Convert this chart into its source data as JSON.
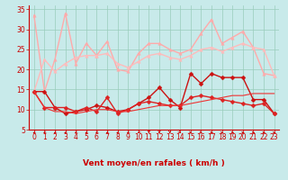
{
  "x": [
    0,
    1,
    2,
    3,
    4,
    5,
    6,
    7,
    8,
    9,
    10,
    11,
    12,
    13,
    14,
    15,
    16,
    17,
    18,
    19,
    20,
    21,
    22,
    23
  ],
  "series": [
    {
      "color": "#ffaaaa",
      "linewidth": 1.0,
      "marker": "^",
      "markersize": 2.5,
      "values": [
        33.5,
        14.5,
        22.5,
        34.0,
        21.5,
        26.5,
        23.5,
        27.0,
        20.0,
        19.5,
        24.0,
        26.5,
        26.5,
        25.0,
        24.0,
        25.0,
        29.0,
        32.5,
        26.5,
        28.0,
        29.5,
        25.5,
        19.0,
        18.5
      ]
    },
    {
      "color": "#ffbbbb",
      "linewidth": 1.0,
      "marker": "^",
      "markersize": 2.5,
      "values": [
        14.5,
        22.5,
        19.5,
        21.5,
        23.0,
        23.5,
        23.5,
        24.0,
        21.5,
        20.5,
        22.0,
        23.5,
        24.0,
        23.0,
        22.5,
        23.5,
        25.0,
        25.5,
        24.5,
        25.5,
        26.5,
        25.5,
        25.0,
        18.5
      ]
    },
    {
      "color": "#cc1111",
      "linewidth": 1.0,
      "marker": "D",
      "markersize": 2.5,
      "values": [
        14.5,
        14.5,
        10.5,
        9.0,
        9.5,
        10.0,
        11.0,
        10.5,
        9.5,
        10.0,
        11.5,
        13.0,
        15.5,
        12.5,
        10.5,
        19.0,
        16.5,
        19.0,
        18.0,
        18.0,
        18.0,
        12.5,
        12.5,
        9.0
      ]
    },
    {
      "color": "#dd2222",
      "linewidth": 1.0,
      "marker": "D",
      "markersize": 2.5,
      "values": [
        14.5,
        10.5,
        10.5,
        10.5,
        9.5,
        10.5,
        9.5,
        13.0,
        9.0,
        10.0,
        11.5,
        12.0,
        11.5,
        11.0,
        11.0,
        13.0,
        13.5,
        13.0,
        12.5,
        12.0,
        11.5,
        11.0,
        11.5,
        9.0
      ]
    },
    {
      "color": "#ee3333",
      "linewidth": 0.8,
      "marker": null,
      "markersize": 0,
      "values": [
        14.5,
        10.5,
        9.5,
        9.5,
        9.0,
        9.5,
        10.0,
        10.0,
        9.5,
        9.5,
        10.0,
        10.5,
        11.0,
        11.0,
        11.0,
        11.5,
        12.0,
        12.5,
        13.0,
        13.5,
        13.5,
        14.0,
        14.0,
        14.0
      ]
    }
  ],
  "arrow_angles": [
    225,
    225,
    225,
    225,
    225,
    225,
    225,
    225,
    225,
    225,
    200,
    180,
    180,
    180,
    160,
    135,
    135,
    90,
    90,
    90,
    90,
    90,
    90,
    90
  ],
  "xlabel": "Vent moyen/en rafales ( km/h )",
  "ylim": [
    5,
    36
  ],
  "yticks": [
    5,
    10,
    15,
    20,
    25,
    30,
    35
  ],
  "xlim": [
    -0.5,
    23.5
  ],
  "bg_color": "#c8eaea",
  "grid_color": "#99ccbb",
  "axis_color": "#cc0000",
  "text_color": "#cc0000",
  "xlabel_fontsize": 6.5,
  "tick_fontsize": 5.5
}
